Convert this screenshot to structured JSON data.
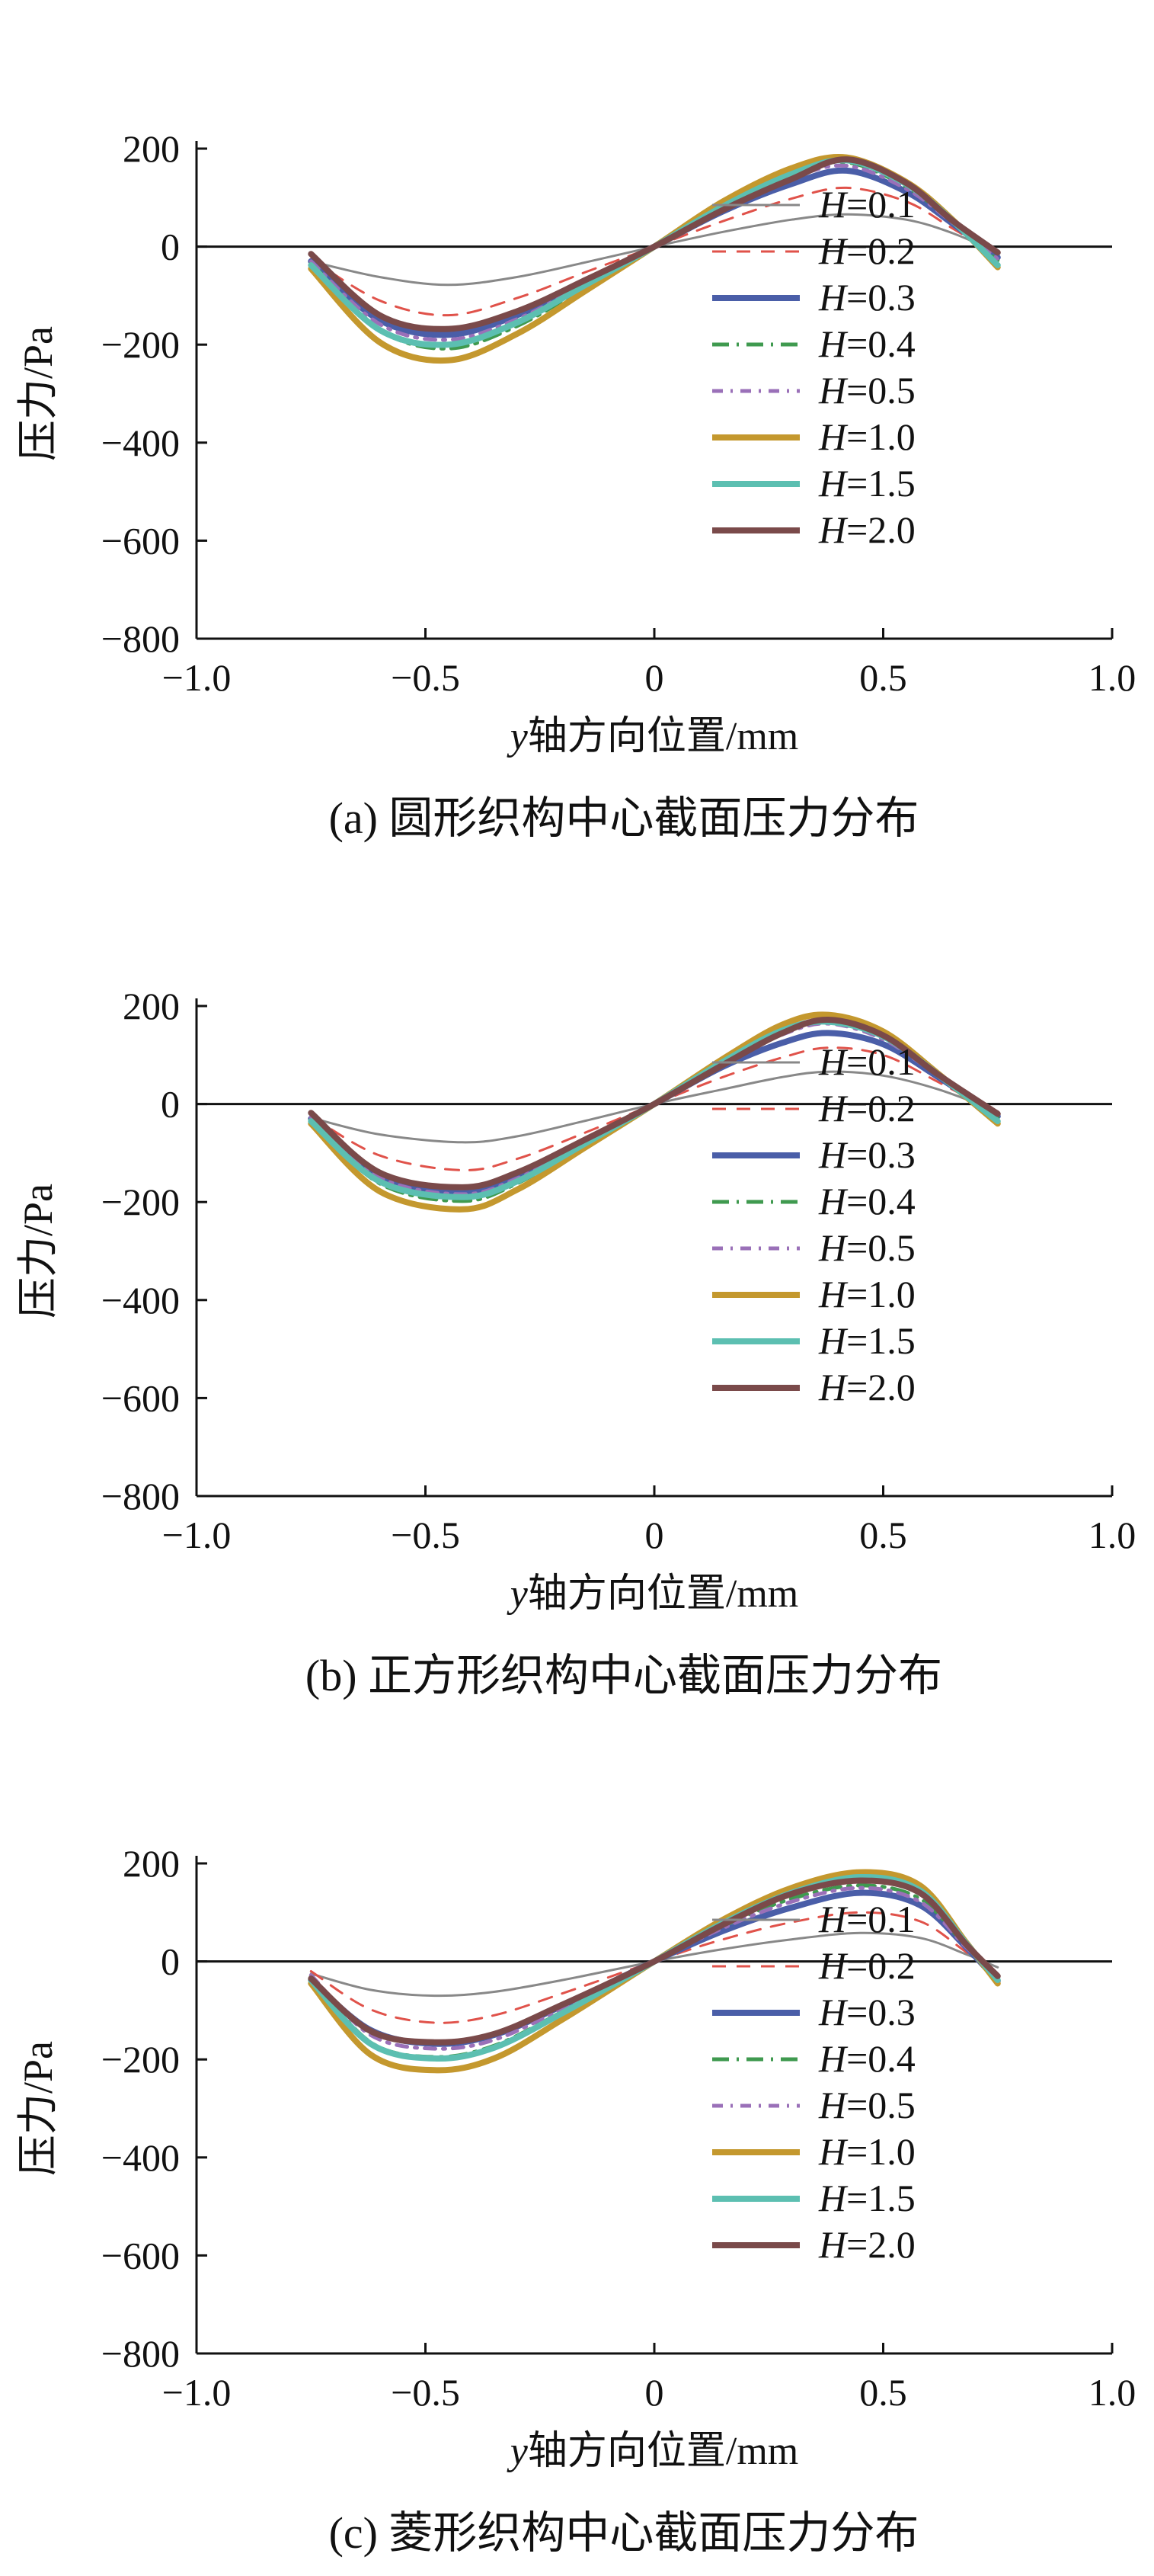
{
  "figure": {
    "legend_prefix": "H",
    "legend_labels": [
      "=0.1",
      "=0.2",
      "=0.3",
      "=0.4",
      "=0.5",
      "=1.0",
      "=1.5",
      "=2.0"
    ]
  },
  "series_styles": [
    {
      "name": "H=0.1",
      "color": "#888888",
      "dash": ""
    },
    {
      "name": "H=0.2",
      "color": "#e0524a",
      "dash": "18,14"
    },
    {
      "name": "H=0.3",
      "color": "#4a5ea8",
      "dash": ""
    },
    {
      "name": "H=0.4",
      "color": "#3f9a4f",
      "dash": "22,10,3,10"
    },
    {
      "name": "H=0.5",
      "color": "#9a70b8",
      "dash": "14,10,3,10"
    },
    {
      "name": "H=1.0",
      "color": "#c4982e",
      "dash": ""
    },
    {
      "name": "H=1.5",
      "color": "#5cbfb1",
      "dash": ""
    },
    {
      "name": "H=2.0",
      "color": "#7a4a4a",
      "dash": ""
    }
  ],
  "chart_data": [
    {
      "type": "line",
      "caption": "(a)  圆形织构中心截面压力分布",
      "xlabel_var": "y",
      "xlabel_rest": "轴方向位置/mm",
      "ylabel": "压力/Pa",
      "xlim": [
        -1.0,
        1.0
      ],
      "ylim": [
        -800,
        200
      ],
      "xticks": [
        "−1.0",
        "−0.5",
        "0",
        "0.5",
        "1.0"
      ],
      "yticks": [
        "200",
        "0",
        "−200",
        "−400",
        "−600",
        "−800"
      ],
      "legend_position": "right-center",
      "x": [
        -0.75,
        -0.6,
        -0.45,
        -0.3,
        -0.15,
        0.0,
        0.15,
        0.3,
        0.42,
        0.55,
        0.65,
        0.75
      ],
      "series": [
        {
          "name": "H=0.1",
          "values": [
            -30,
            -62,
            -78,
            -62,
            -32,
            0,
            30,
            55,
            66,
            55,
            28,
            -12
          ]
        },
        {
          "name": "H=0.2",
          "values": [
            -25,
            -110,
            -140,
            -105,
            -52,
            0,
            52,
            98,
            120,
            92,
            38,
            -18
          ]
        },
        {
          "name": "H=0.3",
          "values": [
            -30,
            -150,
            -180,
            -140,
            -72,
            0,
            72,
            128,
            155,
            112,
            48,
            -22
          ]
        },
        {
          "name": "H=0.4",
          "values": [
            -33,
            -170,
            -208,
            -162,
            -82,
            0,
            82,
            148,
            172,
            122,
            52,
            -28
          ]
        },
        {
          "name": "H=0.5",
          "values": [
            -30,
            -158,
            -190,
            -148,
            -75,
            0,
            78,
            140,
            165,
            118,
            50,
            -25
          ]
        },
        {
          "name": "H=1.0",
          "values": [
            -45,
            -195,
            -232,
            -178,
            -90,
            0,
            92,
            160,
            182,
            132,
            56,
            -42
          ]
        },
        {
          "name": "H=1.5",
          "values": [
            -38,
            -170,
            -200,
            -155,
            -78,
            0,
            82,
            148,
            176,
            128,
            54,
            -38
          ]
        },
        {
          "name": "H=2.0",
          "values": [
            -15,
            -140,
            -168,
            -132,
            -68,
            0,
            75,
            138,
            178,
            130,
            54,
            -12
          ]
        }
      ]
    },
    {
      "type": "line",
      "caption": "(b)  正方形织构中心截面压力分布",
      "xlabel_var": "y",
      "xlabel_rest": "轴方向位置/mm",
      "ylabel": "压力/Pa",
      "xlim": [
        -1.0,
        1.0
      ],
      "ylim": [
        -800,
        200
      ],
      "xticks": [
        "−1.0",
        "−0.5",
        "0",
        "0.5",
        "1.0"
      ],
      "yticks": [
        "200",
        "0",
        "−200",
        "−400",
        "−600",
        "−800"
      ],
      "legend_position": "right-center",
      "x": [
        -0.75,
        -0.6,
        -0.42,
        -0.3,
        -0.15,
        0.0,
        0.15,
        0.28,
        0.38,
        0.5,
        0.62,
        0.75
      ],
      "series": [
        {
          "name": "H=0.1",
          "values": [
            -28,
            -62,
            -78,
            -66,
            -34,
            0,
            30,
            55,
            66,
            58,
            30,
            -15
          ]
        },
        {
          "name": "H=0.2",
          "values": [
            -25,
            -105,
            -135,
            -112,
            -58,
            0,
            55,
            95,
            115,
            100,
            45,
            -20
          ]
        },
        {
          "name": "H=0.3",
          "values": [
            -30,
            -150,
            -182,
            -150,
            -76,
            0,
            76,
            125,
            145,
            122,
            55,
            -25
          ]
        },
        {
          "name": "H=0.4",
          "values": [
            -30,
            -162,
            -198,
            -162,
            -82,
            0,
            86,
            148,
            170,
            138,
            60,
            -28
          ]
        },
        {
          "name": "H=0.5",
          "values": [
            -28,
            -150,
            -184,
            -152,
            -78,
            0,
            82,
            142,
            164,
            132,
            58,
            -26
          ]
        },
        {
          "name": "H=1.0",
          "values": [
            -40,
            -178,
            -215,
            -175,
            -88,
            0,
            92,
            162,
            182,
            148,
            62,
            -40
          ]
        },
        {
          "name": "H=1.5",
          "values": [
            -35,
            -158,
            -190,
            -158,
            -80,
            0,
            86,
            150,
            168,
            138,
            60,
            -35
          ]
        },
        {
          "name": "H=2.0",
          "values": [
            -18,
            -140,
            -170,
            -140,
            -72,
            0,
            80,
            145,
            172,
            140,
            60,
            -20
          ]
        }
      ]
    },
    {
      "type": "line",
      "caption": "(c) 菱形织构中心截面压力分布",
      "xlabel_var": "y",
      "xlabel_rest": "轴方向位置/mm",
      "ylabel": "压力/Pa",
      "xlim": [
        -1.0,
        1.0
      ],
      "ylim": [
        -800,
        200
      ],
      "xticks": [
        "−1.0",
        "−0.5",
        "0",
        "0.5",
        "1.0"
      ],
      "yticks": [
        "200",
        "0",
        "−200",
        "−400",
        "−600",
        "−800"
      ],
      "legend_position": "right-center",
      "x": [
        -0.75,
        -0.62,
        -0.48,
        -0.35,
        -0.2,
        0.0,
        0.15,
        0.3,
        0.45,
        0.58,
        0.68,
        0.75
      ],
      "series": [
        {
          "name": "H=0.1",
          "values": [
            -25,
            -58,
            -70,
            -62,
            -38,
            0,
            25,
            45,
            58,
            48,
            15,
            -12
          ]
        },
        {
          "name": "H=0.2",
          "values": [
            -20,
            -98,
            -125,
            -110,
            -65,
            0,
            45,
            80,
            100,
            82,
            20,
            -25
          ]
        },
        {
          "name": "H=0.3",
          "values": [
            -38,
            -140,
            -168,
            -150,
            -90,
            0,
            62,
            110,
            140,
            115,
            30,
            -40
          ]
        },
        {
          "name": "H=0.4",
          "values": [
            -30,
            -165,
            -195,
            -172,
            -102,
            0,
            72,
            128,
            155,
            128,
            32,
            -35
          ]
        },
        {
          "name": "H=0.5",
          "values": [
            -28,
            -150,
            -178,
            -160,
            -96,
            0,
            68,
            122,
            150,
            122,
            30,
            -32
          ]
        },
        {
          "name": "H=1.0",
          "values": [
            -45,
            -190,
            -222,
            -198,
            -118,
            0,
            85,
            150,
            182,
            155,
            40,
            -45
          ]
        },
        {
          "name": "H=1.5",
          "values": [
            -38,
            -168,
            -198,
            -176,
            -105,
            0,
            78,
            140,
            172,
            145,
            38,
            -38
          ]
        },
        {
          "name": "H=2.0",
          "values": [
            -35,
            -142,
            -165,
            -148,
            -88,
            0,
            75,
            138,
            165,
            140,
            36,
            -30
          ]
        }
      ]
    }
  ]
}
